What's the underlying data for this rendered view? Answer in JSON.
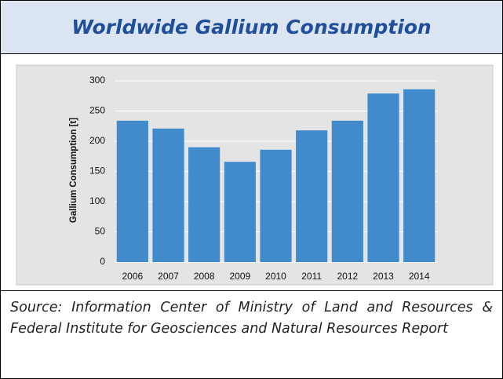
{
  "chart_data": {
    "type": "bar",
    "title": "Worldwide Gallium Consumption",
    "y_label": "Gallium Consumption [t]",
    "categories": [
      "2006",
      "2007",
      "2008",
      "2009",
      "2010",
      "2011",
      "2012",
      "2013",
      "2014"
    ],
    "values": [
      234,
      221,
      190,
      166,
      186,
      218,
      234,
      279,
      286
    ],
    "color": "#418bcd",
    "ylim": [
      0,
      300
    ],
    "yticks": [
      0,
      50,
      100,
      150,
      200,
      250,
      300
    ],
    "grid": true
  },
  "source": "Source: Information Center of Ministry of Land and Resources & Federal Institute for Geosciences and Natural Resources Report"
}
